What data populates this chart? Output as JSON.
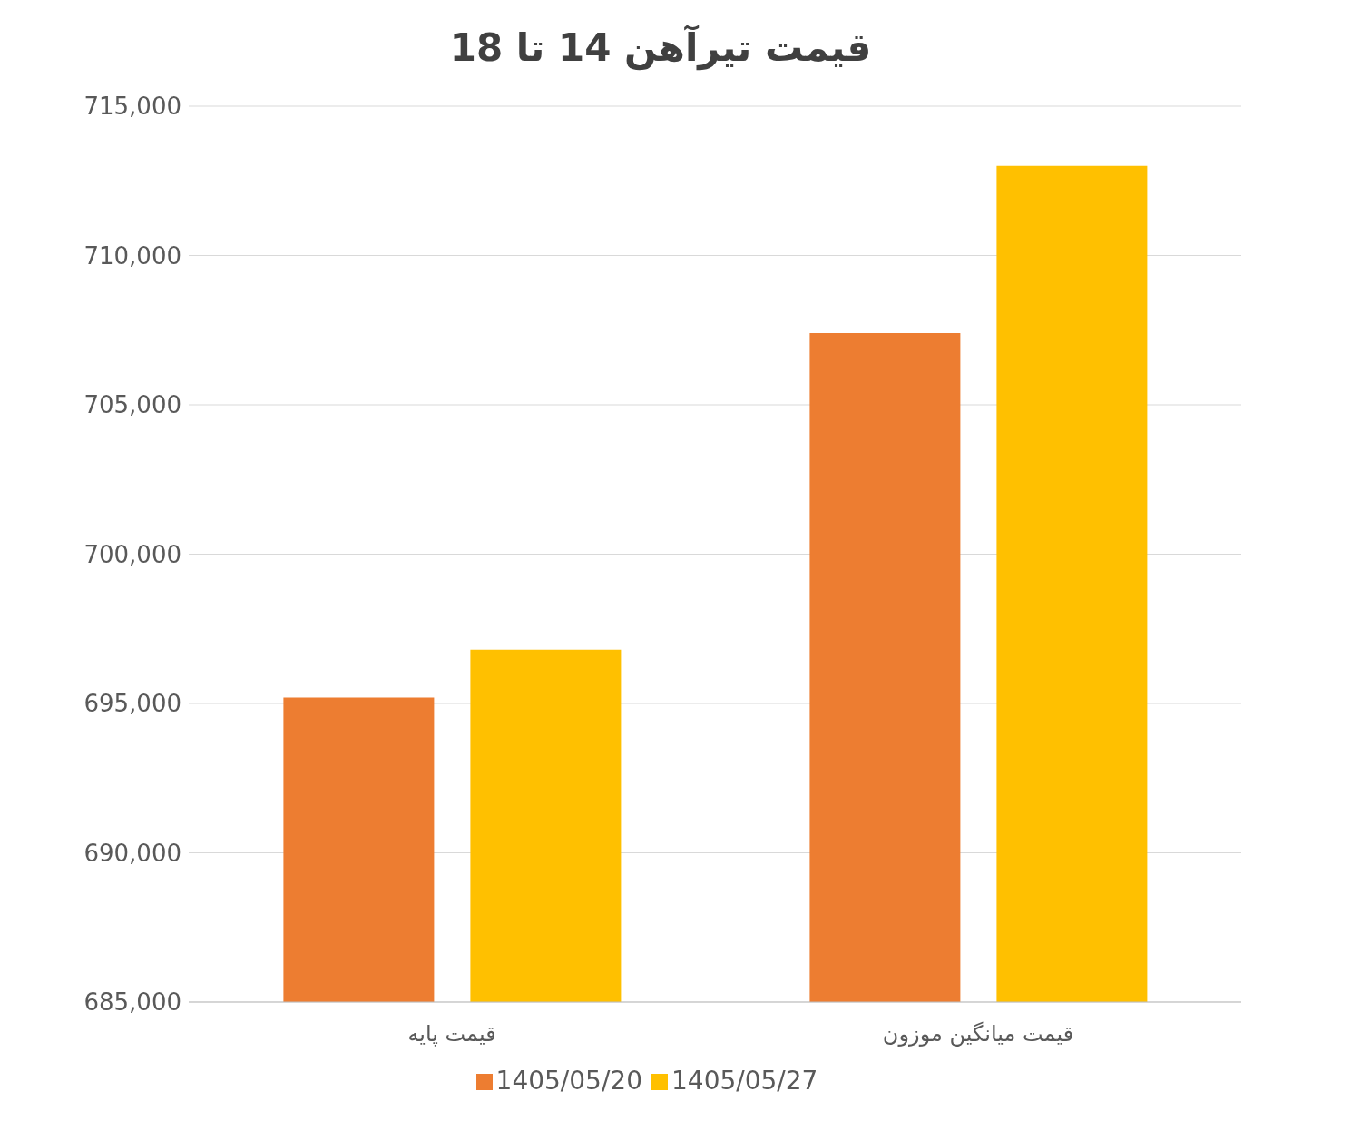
{
  "chart_data": {
    "type": "bar",
    "title": "قیمت تیرآهن 14 تا 18",
    "categories": [
      "قیمت پایه",
      "قیمت میانگین موزون"
    ],
    "series": [
      {
        "name": "1405/05/20",
        "color": "#ed7d31",
        "values": [
          695200,
          707400
        ]
      },
      {
        "name": "1405/05/27",
        "color": "#ffc000",
        "values": [
          696800,
          713000
        ]
      }
    ],
    "ylim": [
      685000,
      715000
    ],
    "yticks": [
      {
        "value": 685000,
        "label": "685,000"
      },
      {
        "value": 690000,
        "label": "690,000"
      },
      {
        "value": 695000,
        "label": "695,000"
      },
      {
        "value": 700000,
        "label": "700,000"
      },
      {
        "value": 705000,
        "label": "705,000"
      },
      {
        "value": 710000,
        "label": "710,000"
      },
      {
        "value": 715000,
        "label": "715,000"
      }
    ],
    "grid": "y",
    "legend": "bottom"
  }
}
